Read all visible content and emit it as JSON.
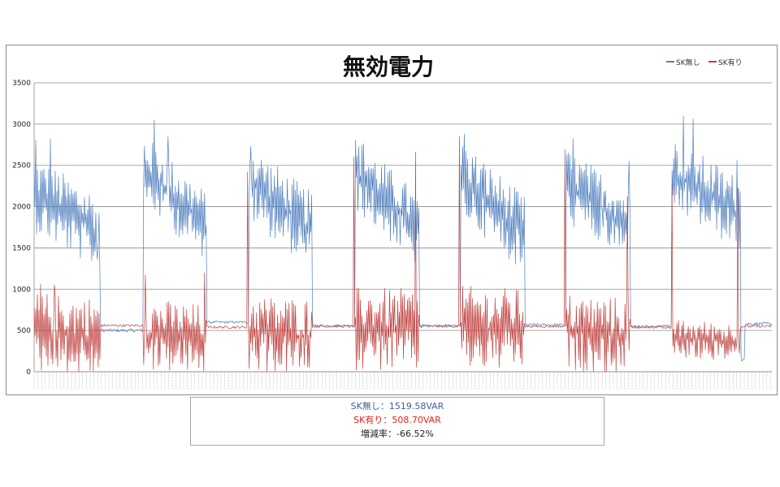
{
  "colors": {
    "without_sk": "#4f7fbf",
    "with_sk": "#c0403d",
    "stat_without": "#3d5f9f",
    "stat_with": "#e0211d",
    "grid": "#8c8c8c"
  },
  "chart_data": {
    "type": "line",
    "title": "無効電力",
    "legend_position": "top-right",
    "grid": true,
    "ylim": [
      0,
      3500
    ],
    "yticks": [
      0,
      500,
      1000,
      1500,
      2000,
      2500,
      3000,
      3500
    ],
    "xlabel": "",
    "ylabel": "",
    "series": [
      {
        "name": "SK無し",
        "segments": [
          {
            "kind": "active",
            "from": 0,
            "to": 82,
            "start": 2150,
            "end": 1680,
            "noise": 520,
            "spikes": [
              [
                2,
                2800
              ],
              [
                20,
                2820
              ],
              [
                78,
                1360
              ]
            ]
          },
          {
            "kind": "idle",
            "from": 82,
            "to": 135,
            "level": 500,
            "noise": 40
          },
          {
            "kind": "active",
            "from": 135,
            "to": 213,
            "start": 2450,
            "end": 1750,
            "noise": 480,
            "spikes": [
              [
                148,
                3050
              ],
              [
                165,
                2850
              ]
            ]
          },
          {
            "kind": "idle",
            "from": 213,
            "to": 265,
            "level": 600,
            "noise": 30
          },
          {
            "kind": "active",
            "from": 265,
            "to": 343,
            "start": 2300,
            "end": 1700,
            "noise": 520,
            "spikes": [
              [
                267,
                2730
              ]
            ]
          },
          {
            "kind": "idle",
            "from": 343,
            "to": 396,
            "level": 560,
            "noise": 30
          },
          {
            "kind": "active",
            "from": 396,
            "to": 475,
            "start": 2400,
            "end": 1700,
            "noise": 500,
            "spikes": [
              [
                406,
                2760
              ]
            ]
          },
          {
            "kind": "idle",
            "from": 475,
            "to": 526,
            "level": 560,
            "noise": 30
          },
          {
            "kind": "active",
            "from": 526,
            "to": 605,
            "start": 2350,
            "end": 1650,
            "noise": 520,
            "spikes": [
              [
                530,
                2880
              ]
            ]
          },
          {
            "kind": "idle",
            "from": 605,
            "to": 656,
            "level": 570,
            "noise": 30
          },
          {
            "kind": "active",
            "from": 656,
            "to": 735,
            "start": 2250,
            "end": 1750,
            "noise": 500,
            "spikes": [
              [
                664,
                2820
              ],
              [
                733,
                2550
              ]
            ]
          },
          {
            "kind": "idle",
            "from": 735,
            "to": 786,
            "level": 540,
            "noise": 30
          },
          {
            "kind": "active",
            "from": 786,
            "to": 871,
            "start": 2400,
            "end": 1900,
            "noise": 500,
            "spikes": [
              [
                800,
                3100
              ],
              [
                812,
                3060
              ],
              [
                866,
                2560
              ]
            ]
          },
          {
            "kind": "dip",
            "from": 871,
            "to": 876,
            "level": 120
          },
          {
            "kind": "idle",
            "from": 876,
            "to": 910,
            "level": 580,
            "noise": 40
          }
        ]
      },
      {
        "name": "SK有り",
        "segments": [
          {
            "kind": "active",
            "from": 0,
            "to": 82,
            "start": 480,
            "end": 420,
            "noise": 540,
            "spikes": [
              [
                8,
                1060
              ],
              [
                25,
                1050
              ]
            ]
          },
          {
            "kind": "idle",
            "from": 82,
            "to": 135,
            "level": 560,
            "noise": 30
          },
          {
            "kind": "active",
            "from": 135,
            "to": 213,
            "start": 460,
            "end": 380,
            "noise": 480,
            "spikes": [
              [
                137,
                1170
              ],
              [
                210,
                1200
              ]
            ]
          },
          {
            "kind": "idle",
            "from": 213,
            "to": 265,
            "level": 540,
            "noise": 30
          },
          {
            "kind": "active",
            "from": 265,
            "to": 343,
            "start": 470,
            "end": 420,
            "noise": 520,
            "spikes": [
              [
                263,
                2420
              ]
            ]
          },
          {
            "kind": "idle",
            "from": 343,
            "to": 396,
            "level": 550,
            "noise": 30
          },
          {
            "kind": "active",
            "from": 396,
            "to": 475,
            "start": 520,
            "end": 500,
            "noise": 560,
            "spikes": [
              [
                394,
                2600
              ],
              [
                470,
                2660
              ]
            ]
          },
          {
            "kind": "idle",
            "from": 475,
            "to": 526,
            "level": 550,
            "noise": 30
          },
          {
            "kind": "active",
            "from": 526,
            "to": 605,
            "start": 540,
            "end": 500,
            "noise": 560,
            "spikes": [
              [
                524,
                2850
              ]
            ]
          },
          {
            "kind": "idle",
            "from": 605,
            "to": 656,
            "level": 550,
            "noise": 30
          },
          {
            "kind": "active",
            "from": 656,
            "to": 735,
            "start": 480,
            "end": 430,
            "noise": 520,
            "spikes": [
              [
                654,
                2690
              ],
              [
                731,
                2120
              ]
            ]
          },
          {
            "kind": "idle",
            "from": 735,
            "to": 786,
            "level": 550,
            "noise": 30
          },
          {
            "kind": "active",
            "from": 786,
            "to": 871,
            "start": 400,
            "end": 360,
            "noise": 260,
            "spikes": [
              [
                786,
                2260
              ],
              [
                867,
                2230
              ]
            ]
          },
          {
            "kind": "idle",
            "from": 871,
            "to": 910,
            "level": 550,
            "noise": 30
          }
        ]
      }
    ],
    "x_points": 910
  },
  "stats": {
    "without_sk": "SK無し：1519.58VAR",
    "with_sk": "SK有り：508.70VAR",
    "change": "増減率：-66.52%"
  }
}
